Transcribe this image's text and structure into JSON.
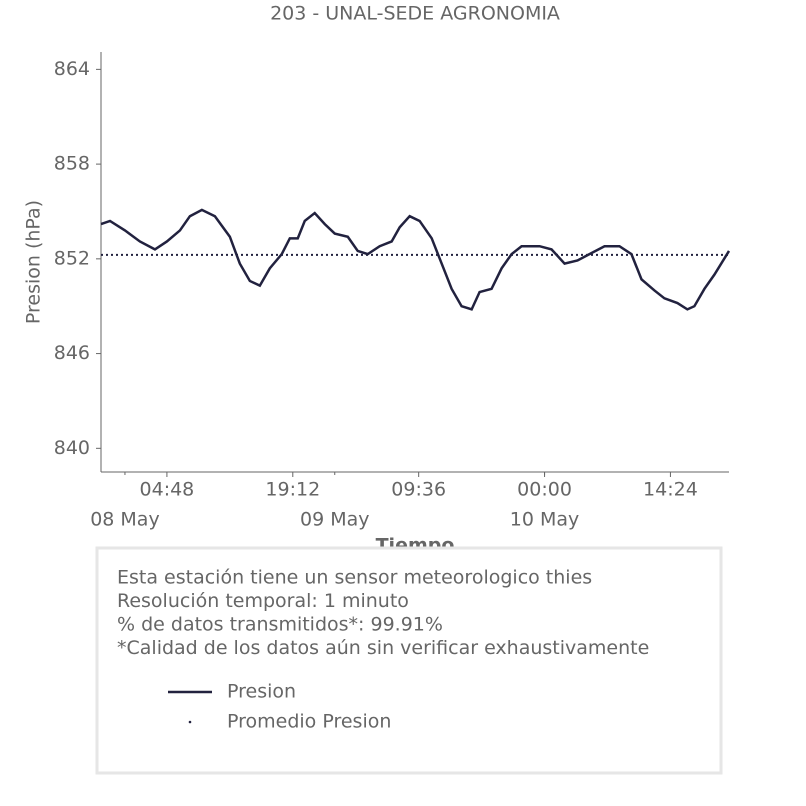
{
  "chart_data": {
    "type": "line",
    "title": "203 - UNAL-SEDE AGRONOMIA",
    "ylabel": "Presion (hPa)",
    "xlabel": "Tiempo",
    "xlim": [
      -2.74,
      69.1
    ],
    "ylim": [
      838.5,
      865.1
    ],
    "yticks": [
      840,
      846,
      852,
      858,
      864
    ],
    "xticks": [
      {
        "value": 4.8,
        "label": "04:48"
      },
      {
        "value": 19.2,
        "label": "19:12"
      },
      {
        "value": 33.6,
        "label": "09:36"
      },
      {
        "value": 48,
        "label": "00:00"
      },
      {
        "value": 62.4,
        "label": "14:24"
      }
    ],
    "xticks_minor": [
      {
        "value": 0,
        "label": "08 May"
      },
      {
        "value": 24,
        "label": "09 May"
      },
      {
        "value": 48,
        "label": "10 May"
      }
    ],
    "series": [
      {
        "name": "Presion",
        "color": "#22223f",
        "x": [
          -2.74,
          -1.71,
          0,
          1.71,
          3.43,
          4.8,
          6.29,
          7.43,
          8.8,
          10.29,
          12.0,
          13.14,
          14.29,
          15.43,
          16.57,
          17.94,
          18.86,
          19.77,
          20.57,
          21.71,
          22.86,
          24.0,
          25.49,
          26.63,
          27.77,
          29.14,
          30.51,
          31.43,
          32.57,
          33.71,
          35.09,
          36.23,
          37.37,
          38.51,
          39.66,
          40.57,
          41.94,
          43.09,
          44.23,
          45.37,
          47.43,
          48.8,
          50.29,
          51.77,
          53.14,
          54.86,
          56.57,
          57.94,
          59.09,
          60.57,
          61.71,
          63.2,
          64.34,
          65.14,
          66.29,
          67.43,
          69.1
        ],
        "values": [
          854.2,
          854.4,
          853.8,
          853.1,
          852.6,
          853.1,
          853.8,
          854.7,
          855.1,
          854.7,
          853.4,
          851.7,
          850.6,
          850.3,
          851.4,
          852.3,
          853.3,
          853.3,
          854.4,
          854.9,
          854.2,
          853.6,
          853.4,
          852.5,
          852.3,
          852.8,
          853.1,
          854.0,
          854.7,
          854.4,
          853.3,
          851.7,
          850.1,
          849.0,
          848.8,
          849.9,
          850.1,
          851.4,
          852.3,
          852.8,
          852.8,
          852.6,
          851.7,
          851.9,
          852.3,
          852.8,
          852.8,
          852.3,
          850.7,
          850.0,
          849.5,
          849.2,
          848.8,
          849.0,
          850.1,
          851.0,
          852.5
        ]
      },
      {
        "name": "Promedio Presion",
        "color": "#22223f",
        "value": 852.25
      }
    ],
    "info": [
      "Esta estación tiene un sensor meteorologico thies",
      "Resolución temporal: 1 minuto",
      "% de datos transmitidos*: 99.91%",
      "*Calidad de los datos aún sin verificar exhaustivamente"
    ]
  }
}
